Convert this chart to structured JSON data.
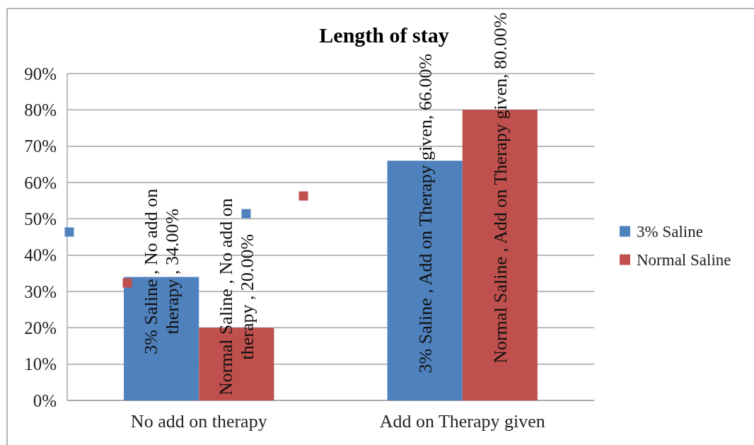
{
  "chart_data": {
    "type": "bar",
    "title": "Length of stay",
    "categories": [
      "No add on therapy",
      "Add on Therapy given"
    ],
    "series": [
      {
        "name": "3% Saline",
        "color": "#4f81bd",
        "values": [
          34,
          66
        ],
        "value_labels": [
          "3% Saline , No add on therapy , 34.00%",
          "3% Saline , Add on Therapy given, 66.00%"
        ]
      },
      {
        "name": "Normal Saline",
        "color": "#c0504d",
        "values": [
          20,
          80
        ],
        "value_labels": [
          "Normal Saline , No add on therapy , 20.00%",
          "Normal Saline , Add on Therapy given, 80.00%"
        ]
      }
    ],
    "ylim": [
      0,
      90
    ],
    "yticks": [
      {
        "value": 0,
        "label": "0%"
      },
      {
        "value": 10,
        "label": "10%"
      },
      {
        "value": 20,
        "label": "20%"
      },
      {
        "value": 30,
        "label": "30%"
      },
      {
        "value": 40,
        "label": "40%"
      },
      {
        "value": 50,
        "label": "50%"
      },
      {
        "value": 60,
        "label": "60%"
      },
      {
        "value": 70,
        "label": "70%"
      },
      {
        "value": 80,
        "label": "80%"
      },
      {
        "value": 90,
        "label": "90%"
      }
    ],
    "grid": "y",
    "legend": "right"
  }
}
